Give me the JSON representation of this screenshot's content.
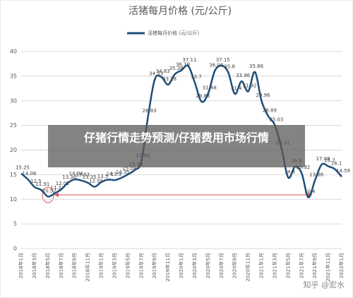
{
  "chart_data": {
    "type": "line",
    "title": "活猪每月价格 (元/公斤)",
    "categories": [
      "2018年1月",
      null,
      "2018年3月",
      null,
      "2018年5月",
      null,
      "2018年7月",
      null,
      "2018年9月",
      null,
      "2018年11月",
      null,
      "2019年1月",
      null,
      "2019年3月",
      null,
      "2019年5月",
      null,
      "2019年7月",
      null,
      "2019年9月",
      null,
      "2019年11月",
      null,
      "2020年1月",
      null,
      "2020年3月",
      null,
      "2020年5月",
      null,
      "2020年7月",
      null,
      "2020年9月",
      null,
      "2020年11月",
      null,
      "2021年1月",
      null,
      "2021年3月",
      null,
      "2021年5月",
      null,
      "2021年7月",
      null,
      "2021年9月",
      null,
      "2021年11月",
      null,
      "2022年1月"
    ],
    "series": [
      {
        "name": "活猪每月价格 (元/公斤)",
        "color": "#1f4e79",
        "values": [
          15.25,
          14.06,
          12.5,
          11.91,
          10.57,
          11.2,
          12.02,
          13.36,
          14.04,
          13.83,
          13.35,
          12.55,
          13.5,
          14.0,
          13.9,
          14.35,
          15.08,
          15.94,
          17.68,
          26.83,
          34.33,
          34.83,
          33.28,
          35.38,
          36.19,
          37.11,
          33.7,
          29.83,
          31.48,
          36.08,
          37.15,
          35.8,
          31.4,
          33.96,
          31.92,
          35.86,
          29.96,
          26.89,
          25.03,
          20.31,
          14.4,
          16.6,
          15.32,
          10.4,
          13.86,
          17.08,
          16.7,
          16.1,
          14.59
        ]
      }
    ],
    "ylim": [
      0,
      40
    ],
    "yticks": [
      0,
      5,
      10,
      15,
      20,
      25,
      30,
      35,
      40
    ],
    "grid": true,
    "legend": "top",
    "banner": "仔猪行情走势预测/仔猪费用市场行情",
    "watermark": "知乎 @宏水"
  }
}
